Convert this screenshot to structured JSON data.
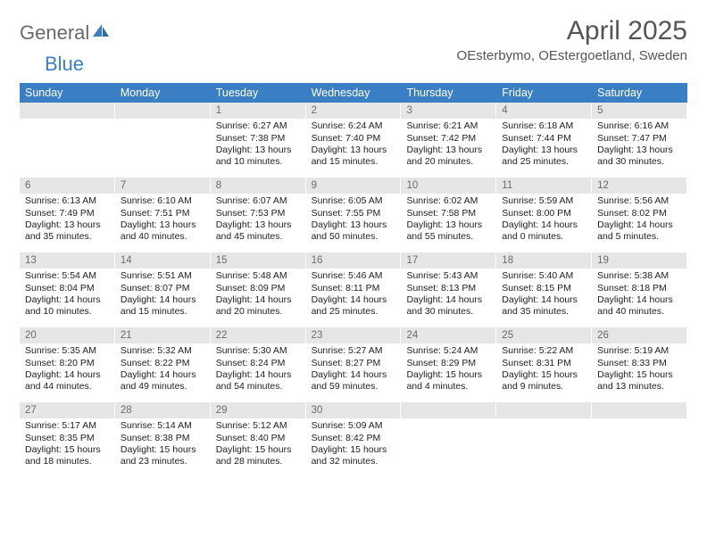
{
  "brand": {
    "text1": "General",
    "text2": "Blue"
  },
  "title": "April 2025",
  "location": "OEsterbymo, OEstergoetland, Sweden",
  "colors": {
    "header_bg": "#3a7fc4",
    "header_text": "#ffffff",
    "datebar_bg": "#e6e6e6",
    "datebar_text": "#6a6a6a",
    "body_text": "#222222",
    "title_text": "#555555",
    "brand_gray": "#6a6a6a",
    "brand_blue": "#3a7fc4",
    "background": "#ffffff"
  },
  "typography": {
    "title_fontsize": 30,
    "location_fontsize": 15,
    "dayheader_fontsize": 12.5,
    "date_fontsize": 11.5,
    "body_fontsize": 10.5
  },
  "layout": {
    "columns": 7,
    "rows": 5,
    "cell_min_height": 84
  },
  "day_names": [
    "Sunday",
    "Monday",
    "Tuesday",
    "Wednesday",
    "Thursday",
    "Friday",
    "Saturday"
  ],
  "weeks": [
    [
      {
        "empty": true
      },
      {
        "empty": true
      },
      {
        "date": "1",
        "sunrise": "Sunrise: 6:27 AM",
        "sunset": "Sunset: 7:38 PM",
        "day1": "Daylight: 13 hours",
        "day2": "and 10 minutes."
      },
      {
        "date": "2",
        "sunrise": "Sunrise: 6:24 AM",
        "sunset": "Sunset: 7:40 PM",
        "day1": "Daylight: 13 hours",
        "day2": "and 15 minutes."
      },
      {
        "date": "3",
        "sunrise": "Sunrise: 6:21 AM",
        "sunset": "Sunset: 7:42 PM",
        "day1": "Daylight: 13 hours",
        "day2": "and 20 minutes."
      },
      {
        "date": "4",
        "sunrise": "Sunrise: 6:18 AM",
        "sunset": "Sunset: 7:44 PM",
        "day1": "Daylight: 13 hours",
        "day2": "and 25 minutes."
      },
      {
        "date": "5",
        "sunrise": "Sunrise: 6:16 AM",
        "sunset": "Sunset: 7:47 PM",
        "day1": "Daylight: 13 hours",
        "day2": "and 30 minutes."
      }
    ],
    [
      {
        "date": "6",
        "sunrise": "Sunrise: 6:13 AM",
        "sunset": "Sunset: 7:49 PM",
        "day1": "Daylight: 13 hours",
        "day2": "and 35 minutes."
      },
      {
        "date": "7",
        "sunrise": "Sunrise: 6:10 AM",
        "sunset": "Sunset: 7:51 PM",
        "day1": "Daylight: 13 hours",
        "day2": "and 40 minutes."
      },
      {
        "date": "8",
        "sunrise": "Sunrise: 6:07 AM",
        "sunset": "Sunset: 7:53 PM",
        "day1": "Daylight: 13 hours",
        "day2": "and 45 minutes."
      },
      {
        "date": "9",
        "sunrise": "Sunrise: 6:05 AM",
        "sunset": "Sunset: 7:55 PM",
        "day1": "Daylight: 13 hours",
        "day2": "and 50 minutes."
      },
      {
        "date": "10",
        "sunrise": "Sunrise: 6:02 AM",
        "sunset": "Sunset: 7:58 PM",
        "day1": "Daylight: 13 hours",
        "day2": "and 55 minutes."
      },
      {
        "date": "11",
        "sunrise": "Sunrise: 5:59 AM",
        "sunset": "Sunset: 8:00 PM",
        "day1": "Daylight: 14 hours",
        "day2": "and 0 minutes."
      },
      {
        "date": "12",
        "sunrise": "Sunrise: 5:56 AM",
        "sunset": "Sunset: 8:02 PM",
        "day1": "Daylight: 14 hours",
        "day2": "and 5 minutes."
      }
    ],
    [
      {
        "date": "13",
        "sunrise": "Sunrise: 5:54 AM",
        "sunset": "Sunset: 8:04 PM",
        "day1": "Daylight: 14 hours",
        "day2": "and 10 minutes."
      },
      {
        "date": "14",
        "sunrise": "Sunrise: 5:51 AM",
        "sunset": "Sunset: 8:07 PM",
        "day1": "Daylight: 14 hours",
        "day2": "and 15 minutes."
      },
      {
        "date": "15",
        "sunrise": "Sunrise: 5:48 AM",
        "sunset": "Sunset: 8:09 PM",
        "day1": "Daylight: 14 hours",
        "day2": "and 20 minutes."
      },
      {
        "date": "16",
        "sunrise": "Sunrise: 5:46 AM",
        "sunset": "Sunset: 8:11 PM",
        "day1": "Daylight: 14 hours",
        "day2": "and 25 minutes."
      },
      {
        "date": "17",
        "sunrise": "Sunrise: 5:43 AM",
        "sunset": "Sunset: 8:13 PM",
        "day1": "Daylight: 14 hours",
        "day2": "and 30 minutes."
      },
      {
        "date": "18",
        "sunrise": "Sunrise: 5:40 AM",
        "sunset": "Sunset: 8:15 PM",
        "day1": "Daylight: 14 hours",
        "day2": "and 35 minutes."
      },
      {
        "date": "19",
        "sunrise": "Sunrise: 5:38 AM",
        "sunset": "Sunset: 8:18 PM",
        "day1": "Daylight: 14 hours",
        "day2": "and 40 minutes."
      }
    ],
    [
      {
        "date": "20",
        "sunrise": "Sunrise: 5:35 AM",
        "sunset": "Sunset: 8:20 PM",
        "day1": "Daylight: 14 hours",
        "day2": "and 44 minutes."
      },
      {
        "date": "21",
        "sunrise": "Sunrise: 5:32 AM",
        "sunset": "Sunset: 8:22 PM",
        "day1": "Daylight: 14 hours",
        "day2": "and 49 minutes."
      },
      {
        "date": "22",
        "sunrise": "Sunrise: 5:30 AM",
        "sunset": "Sunset: 8:24 PM",
        "day1": "Daylight: 14 hours",
        "day2": "and 54 minutes."
      },
      {
        "date": "23",
        "sunrise": "Sunrise: 5:27 AM",
        "sunset": "Sunset: 8:27 PM",
        "day1": "Daylight: 14 hours",
        "day2": "and 59 minutes."
      },
      {
        "date": "24",
        "sunrise": "Sunrise: 5:24 AM",
        "sunset": "Sunset: 8:29 PM",
        "day1": "Daylight: 15 hours",
        "day2": "and 4 minutes."
      },
      {
        "date": "25",
        "sunrise": "Sunrise: 5:22 AM",
        "sunset": "Sunset: 8:31 PM",
        "day1": "Daylight: 15 hours",
        "day2": "and 9 minutes."
      },
      {
        "date": "26",
        "sunrise": "Sunrise: 5:19 AM",
        "sunset": "Sunset: 8:33 PM",
        "day1": "Daylight: 15 hours",
        "day2": "and 13 minutes."
      }
    ],
    [
      {
        "date": "27",
        "sunrise": "Sunrise: 5:17 AM",
        "sunset": "Sunset: 8:35 PM",
        "day1": "Daylight: 15 hours",
        "day2": "and 18 minutes."
      },
      {
        "date": "28",
        "sunrise": "Sunrise: 5:14 AM",
        "sunset": "Sunset: 8:38 PM",
        "day1": "Daylight: 15 hours",
        "day2": "and 23 minutes."
      },
      {
        "date": "29",
        "sunrise": "Sunrise: 5:12 AM",
        "sunset": "Sunset: 8:40 PM",
        "day1": "Daylight: 15 hours",
        "day2": "and 28 minutes."
      },
      {
        "date": "30",
        "sunrise": "Sunrise: 5:09 AM",
        "sunset": "Sunset: 8:42 PM",
        "day1": "Daylight: 15 hours",
        "day2": "and 32 minutes."
      },
      {
        "empty": true
      },
      {
        "empty": true
      },
      {
        "empty": true
      }
    ]
  ]
}
